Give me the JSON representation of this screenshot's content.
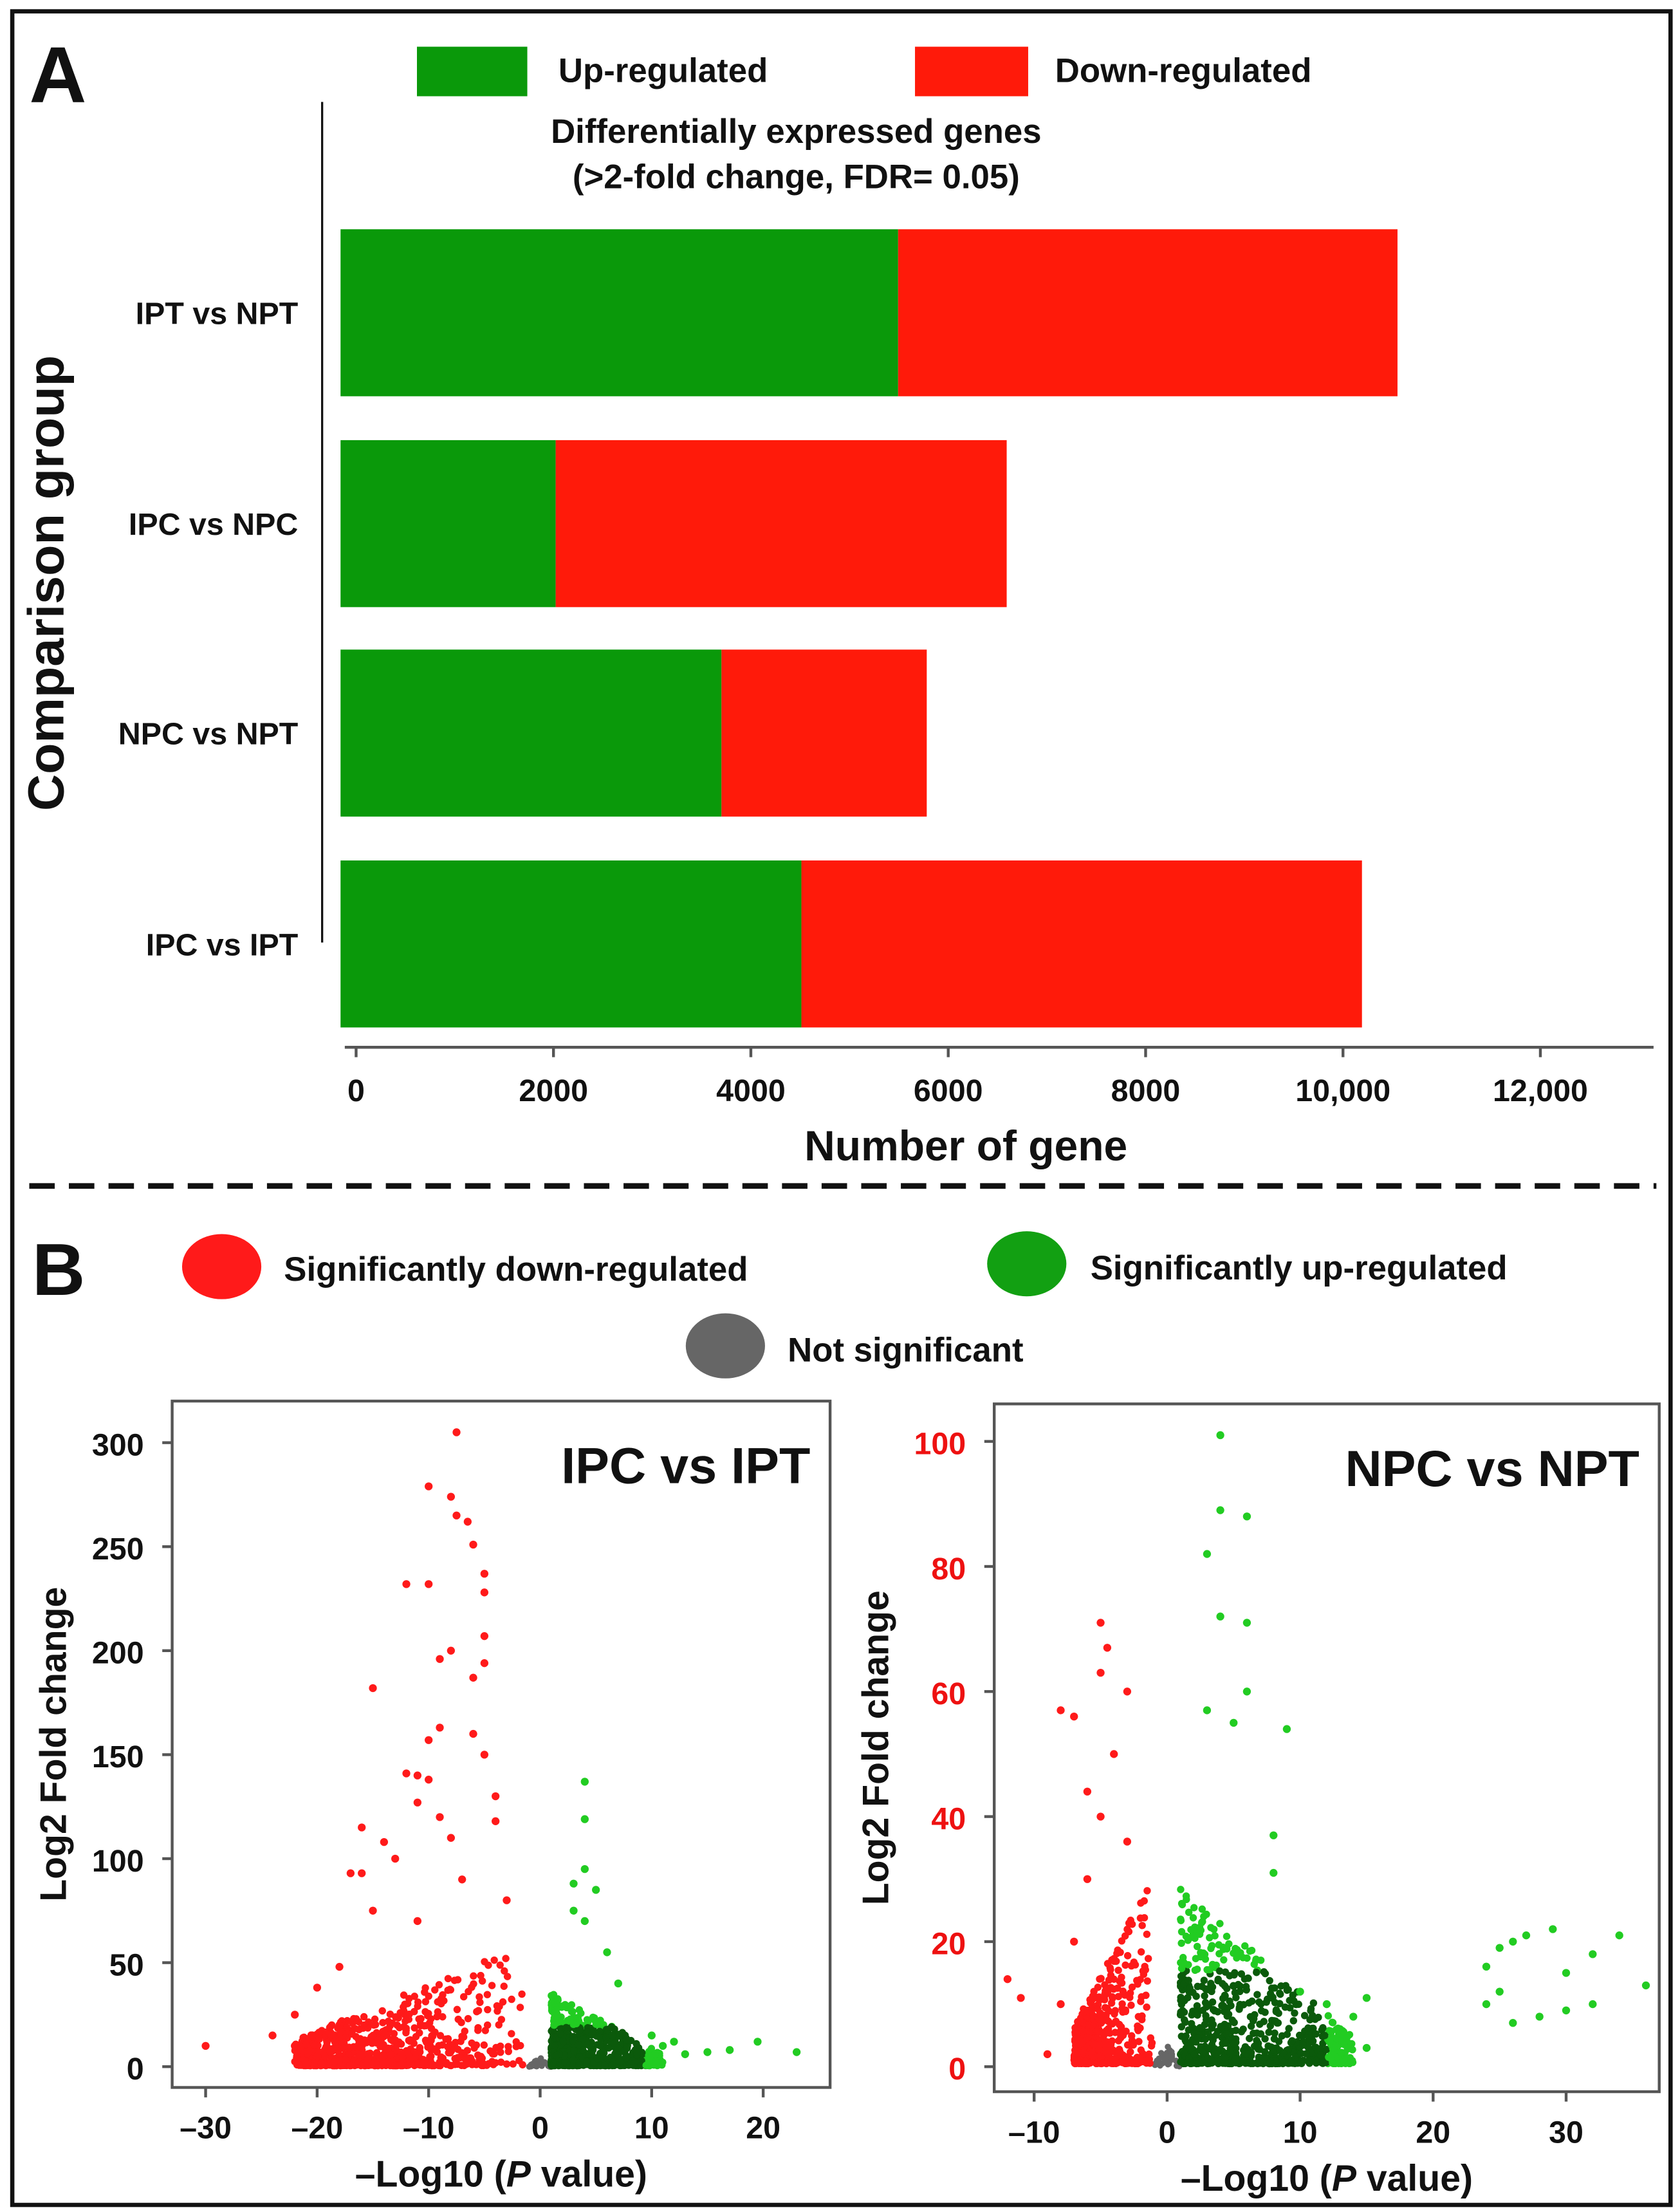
{
  "panel_a_letter": "A",
  "panel_b_letter": "B",
  "chart_data": [
    {
      "type": "bar",
      "stacked": true,
      "orientation": "horizontal",
      "title": "Differentially expressed genes",
      "subtitle": "(>2-fold change, FDR= 0.05)",
      "xlabel": "Number of gene",
      "ylabel": "Comparison group",
      "xlim": [
        0,
        13000
      ],
      "xticks": [
        0,
        2000,
        4000,
        6000,
        8000,
        10000,
        12000
      ],
      "xtick_labels": [
        "0",
        "2000",
        "4000",
        "6000",
        "8000",
        "10,000",
        "12,000"
      ],
      "legend_placement": "top",
      "categories": [
        "IPT vs NPT",
        "IPC vs NPC",
        "NPC vs NPT",
        "IPC vs IPT"
      ],
      "series": [
        {
          "name": "Up-regulated",
          "color": "#0a990a",
          "values": [
            5650,
            2180,
            3860,
            4670
          ]
        },
        {
          "name": "Down-regulated",
          "color": "#ff1a0a",
          "values": [
            5060,
            4570,
            2080,
            5680
          ]
        }
      ]
    },
    {
      "type": "scatter",
      "title": "IPC vs IPT",
      "xlabel_prefix": "–Log10 (",
      "xlabel_italic": "P",
      "xlabel_suffix": " value)",
      "ylabel": "Log2  Fold  change",
      "xlim": [
        -33,
        26
      ],
      "ylim": [
        -10,
        320
      ],
      "xticks": [
        -30,
        -20,
        -10,
        0,
        10,
        20
      ],
      "xtick_labels": [
        "–30",
        "–20",
        "–10",
        "0",
        "10",
        "20"
      ],
      "yticks": [
        0,
        50,
        100,
        150,
        200,
        250,
        300
      ],
      "ytick_color": "#111111",
      "down_points": [
        [
          -30,
          10
        ],
        [
          -7.5,
          305
        ],
        [
          -10,
          279
        ],
        [
          -8,
          274
        ],
        [
          -7.5,
          265
        ],
        [
          -6.5,
          262
        ],
        [
          -6,
          251
        ],
        [
          -5,
          237
        ],
        [
          -5,
          228
        ],
        [
          -12,
          232
        ],
        [
          -10,
          232
        ],
        [
          -15,
          182
        ],
        [
          -8,
          200
        ],
        [
          -9,
          196
        ],
        [
          -5,
          207
        ],
        [
          -5,
          194
        ],
        [
          -6,
          187
        ],
        [
          -9,
          163
        ],
        [
          -10,
          157
        ],
        [
          -6,
          160
        ],
        [
          -5,
          150
        ],
        [
          -12,
          141
        ],
        [
          -11,
          140
        ],
        [
          -10,
          138
        ],
        [
          -11,
          127
        ],
        [
          -16,
          115
        ],
        [
          -14,
          108
        ],
        [
          -17,
          93
        ],
        [
          -16,
          93
        ],
        [
          -15,
          75
        ],
        [
          -18,
          48
        ],
        [
          -20,
          38
        ],
        [
          -22,
          25
        ],
        [
          -24,
          15
        ],
        [
          -22,
          10
        ],
        [
          -20,
          5
        ],
        [
          -18,
          20
        ],
        [
          -13,
          100
        ],
        [
          -9,
          120
        ],
        [
          -8,
          110
        ],
        [
          -4,
          130
        ],
        [
          -4,
          118
        ],
        [
          -7,
          90
        ],
        [
          -3,
          80
        ],
        [
          -11,
          70
        ]
      ],
      "up_points": [
        [
          4,
          137
        ],
        [
          4,
          119
        ],
        [
          4,
          95
        ],
        [
          3,
          88
        ],
        [
          5,
          85
        ],
        [
          4,
          70
        ],
        [
          3,
          75
        ],
        [
          6,
          55
        ],
        [
          7,
          40
        ],
        [
          10,
          15
        ],
        [
          12,
          12
        ],
        [
          15,
          7
        ],
        [
          17,
          8
        ],
        [
          19.5,
          12
        ],
        [
          23,
          7
        ],
        [
          11,
          10
        ],
        [
          13,
          6
        ]
      ],
      "clouds": {
        "down": {
          "xmin": -22,
          "xmax": -1,
          "ymax": 60,
          "n": 700
        },
        "up": {
          "xmin": 1,
          "xmax": 11,
          "ymax": 35,
          "n": 600
        },
        "ns": {
          "xmin": -1,
          "xmax": 1,
          "ymax": 6,
          "n": 40
        }
      }
    },
    {
      "type": "scatter",
      "title": "NPC vs NPT",
      "xlabel_prefix": "–Log10 (",
      "xlabel_italic": "P",
      "xlabel_suffix": " value)",
      "ylabel": "Log2  Fold  change",
      "xlim": [
        -13,
        37
      ],
      "ylim": [
        -4,
        106
      ],
      "xticks": [
        -10,
        0,
        10,
        20,
        30
      ],
      "xtick_labels": [
        "–10",
        "0",
        "10",
        "20",
        "30"
      ],
      "yticks": [
        0,
        20,
        40,
        60,
        80,
        100
      ],
      "ytick_color": "#ee1111",
      "down_points": [
        [
          -12,
          14
        ],
        [
          -11,
          11
        ],
        [
          -9,
          2
        ],
        [
          -8,
          57
        ],
        [
          -7,
          56
        ],
        [
          -5,
          71
        ],
        [
          -4.5,
          67
        ],
        [
          -5,
          63
        ],
        [
          -3,
          60
        ],
        [
          -6,
          44
        ],
        [
          -5,
          40
        ],
        [
          -4,
          50
        ],
        [
          -3,
          36
        ],
        [
          -7,
          20
        ],
        [
          -6,
          30
        ],
        [
          -8,
          10
        ]
      ],
      "up_points": [
        [
          4,
          101
        ],
        [
          4,
          89
        ],
        [
          6,
          88
        ],
        [
          3,
          82
        ],
        [
          4,
          72
        ],
        [
          6,
          71
        ],
        [
          6,
          60
        ],
        [
          5,
          55
        ],
        [
          9,
          54
        ],
        [
          3,
          57
        ],
        [
          8,
          37
        ],
        [
          8,
          31
        ],
        [
          10,
          12
        ],
        [
          12,
          10
        ],
        [
          15,
          11
        ],
        [
          15,
          3
        ],
        [
          24,
          16
        ],
        [
          25,
          19
        ],
        [
          26,
          20
        ],
        [
          27,
          21
        ],
        [
          29,
          22
        ],
        [
          34,
          21
        ],
        [
          32,
          18
        ],
        [
          30,
          15
        ],
        [
          36,
          13
        ],
        [
          24,
          10
        ],
        [
          25,
          12
        ],
        [
          26,
          7
        ],
        [
          28,
          8
        ],
        [
          30,
          9
        ],
        [
          32,
          10
        ],
        [
          13,
          6
        ],
        [
          14,
          8
        ]
      ],
      "clouds": {
        "down": {
          "xmin": -7,
          "xmax": -1,
          "ymax": 30,
          "n": 500
        },
        "up": {
          "xmin": 1,
          "xmax": 14,
          "ymax": 28,
          "n": 700
        },
        "ns": {
          "xmin": -1,
          "xmax": 1,
          "ymax": 4,
          "n": 30
        }
      }
    }
  ],
  "legend_b": {
    "down": {
      "label": "Significantly  down-regulated",
      "color": "#ff1a1a"
    },
    "up": {
      "label": "Significantly  up-regulated",
      "color": "#12a012"
    },
    "ns": {
      "label": "Not significant",
      "color": "#666666"
    }
  },
  "colors": {
    "dark_green": "#0b5a0b",
    "light_green": "#22cc22",
    "gray": "#666666",
    "red": "#ff1a1a"
  }
}
